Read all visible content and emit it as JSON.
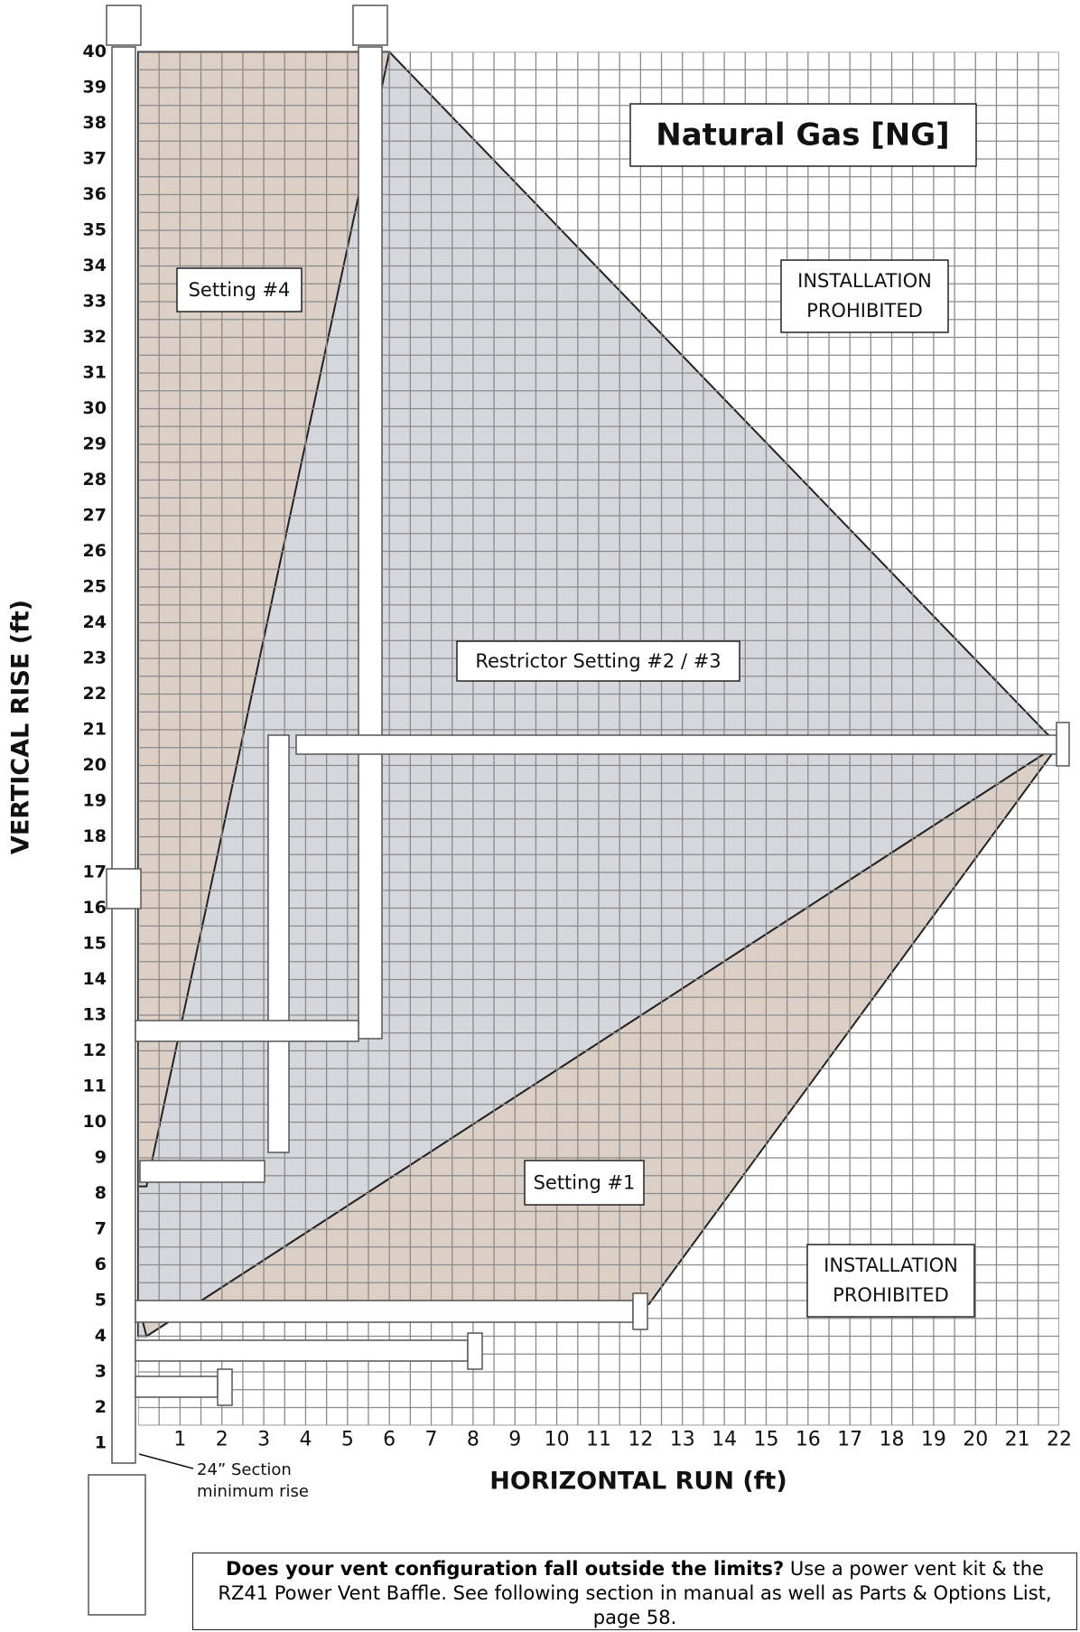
{
  "chart_data": {
    "type": "region",
    "title": "Natural Gas [NG]",
    "x_label": "HORIZONTAL RUN (ft)",
    "y_label": "VERTICAL RISE (ft)",
    "xlim": [
      0,
      22
    ],
    "ylim": [
      1.5,
      40
    ],
    "xticks": [
      1,
      2,
      3,
      4,
      5,
      6,
      7,
      8,
      9,
      10,
      11,
      12,
      13,
      14,
      15,
      16,
      17,
      18,
      19,
      20,
      21,
      22
    ],
    "yticks": [
      1,
      2,
      3,
      4,
      5,
      6,
      7,
      8,
      9,
      10,
      11,
      12,
      13,
      14,
      15,
      16,
      17,
      18,
      19,
      20,
      21,
      22,
      23,
      24,
      25,
      26,
      27,
      28,
      29,
      30,
      31,
      32,
      33,
      34,
      35,
      36,
      37,
      38,
      39,
      40
    ],
    "grid": true,
    "regions": [
      {
        "name": "Restrictor Setting #2 / #3",
        "color": "#d5d7dc",
        "x": [
          0,
          6,
          21.7,
          22,
          0.2,
          0
        ],
        "y": [
          40,
          40,
          20.9,
          20.6,
          4,
          4
        ]
      },
      {
        "name": "Setting #4",
        "color": "#dccfc5",
        "x": [
          0,
          6,
          0.2,
          0
        ],
        "y": [
          40,
          40,
          8.2,
          8.2
        ]
      },
      {
        "name": "Setting #1",
        "color": "#dccfc5",
        "x": [
          0,
          12.2,
          22,
          0.2
        ],
        "y": [
          4.9,
          4.9,
          20.6,
          4
        ]
      }
    ],
    "prohibited_labels": [
      [
        "INSTALLATION",
        "PROHIBITED"
      ],
      [
        "INSTALLATION",
        "PROHIBITED"
      ]
    ],
    "annotation": [
      "24” Section",
      "minimum rise"
    ]
  },
  "note": {
    "bold": "Does your vent configuration fall outside the limits?",
    "text": "Use a power vent kit & the RZ41 Power Vent Baffle. See following section in manual as well as Parts & Options List, page 58."
  }
}
